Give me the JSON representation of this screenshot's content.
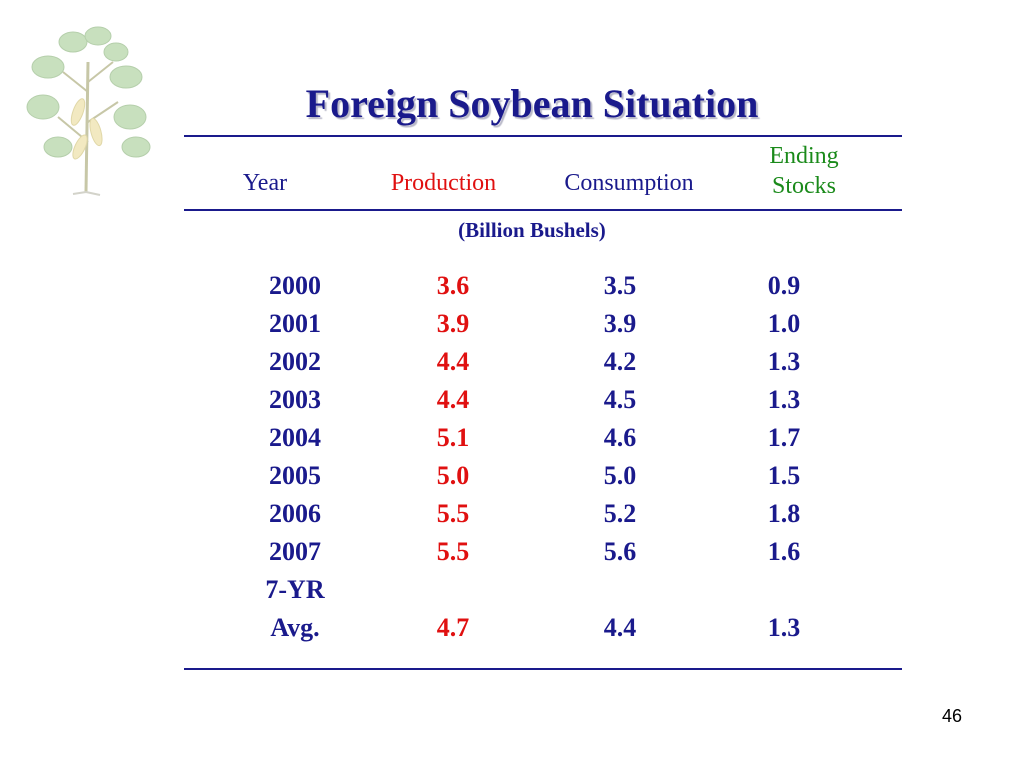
{
  "title": "Foreign Soybean Situation",
  "headers": {
    "year": "Year",
    "production": "Production",
    "consumption": "Consumption",
    "ending_stocks_line1": "Ending",
    "ending_stocks_line2": "Stocks"
  },
  "units": "(Billion Bushels)",
  "rows": [
    {
      "year": "2000",
      "production": "3.6",
      "consumption": "3.5",
      "ending_stocks": "0.9"
    },
    {
      "year": "2001",
      "production": "3.9",
      "consumption": "3.9",
      "ending_stocks": "1.0"
    },
    {
      "year": "2002",
      "production": "4.4",
      "consumption": "4.2",
      "ending_stocks": "1.3"
    },
    {
      "year": "2003",
      "production": "4.4",
      "consumption": "4.5",
      "ending_stocks": "1.3"
    },
    {
      "year": "2004",
      "production": "5.1",
      "consumption": "4.6",
      "ending_stocks": "1.7"
    },
    {
      "year": "2005",
      "production": "5.0",
      "consumption": "5.0",
      "ending_stocks": "1.5"
    },
    {
      "year": "2006",
      "production": "5.5",
      "consumption": "5.2",
      "ending_stocks": "1.8"
    },
    {
      "year": "2007",
      "production": "5.5",
      "consumption": "5.6",
      "ending_stocks": "1.6"
    }
  ],
  "average": {
    "label_line1": "7-YR",
    "label_line2": "Avg.",
    "production": "4.7",
    "consumption": "4.4",
    "ending_stocks": "1.3"
  },
  "slide_number": "46",
  "colors": {
    "title": "#1a1a8c",
    "production": "#e01010",
    "consumption": "#1a1a8c",
    "ending_stocks_header": "#1a8a1a",
    "rule": "#1a1a8c"
  },
  "icons": {
    "decoration": "soybean-plant-icon"
  }
}
